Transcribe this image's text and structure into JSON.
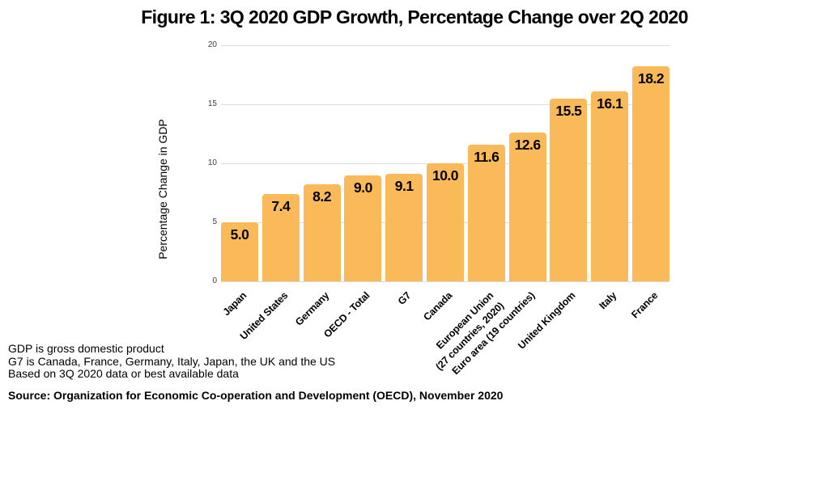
{
  "title": "Figure 1: 3Q 2020 GDP Growth, Percentage Change over 2Q 2020",
  "chart_data": {
    "type": "bar",
    "title": "Figure 1: 3Q 2020 GDP Growth, Percentage Change over 2Q 2020",
    "xlabel": "",
    "ylabel": "Percentage Change in GDP",
    "ylim": [
      0,
      20
    ],
    "yticks": [
      0,
      5,
      10,
      15,
      20
    ],
    "grid": true,
    "legend": "none",
    "bar_color": "#FBBA5A",
    "gridline_color": "#dcdcdc",
    "categories": [
      "Japan",
      "United States",
      "Germany",
      "OECD - Total",
      "G7",
      "Canada",
      "European Union\n(27 countries, 2020)",
      "Euro area (19 countries)",
      "United Kingdom",
      "Italy",
      "France"
    ],
    "values": [
      5.0,
      7.4,
      8.2,
      9.0,
      9.1,
      10.0,
      11.6,
      12.6,
      15.5,
      16.1,
      18.2
    ],
    "value_labels": [
      "5.0",
      "7.4",
      "8.2",
      "9.0",
      "9.1",
      "10.0",
      "11.6",
      "12.6",
      "15.5",
      "16.1",
      "18.2"
    ]
  },
  "notes": [
    "GDP is gross domestic product",
    "G7 is Canada, France, Germany, Italy, Japan, the UK and the US",
    "Based on 3Q 2020 data or best available data"
  ],
  "source": "Source: Organization for Economic Co-operation and Development (OECD), November 2020"
}
